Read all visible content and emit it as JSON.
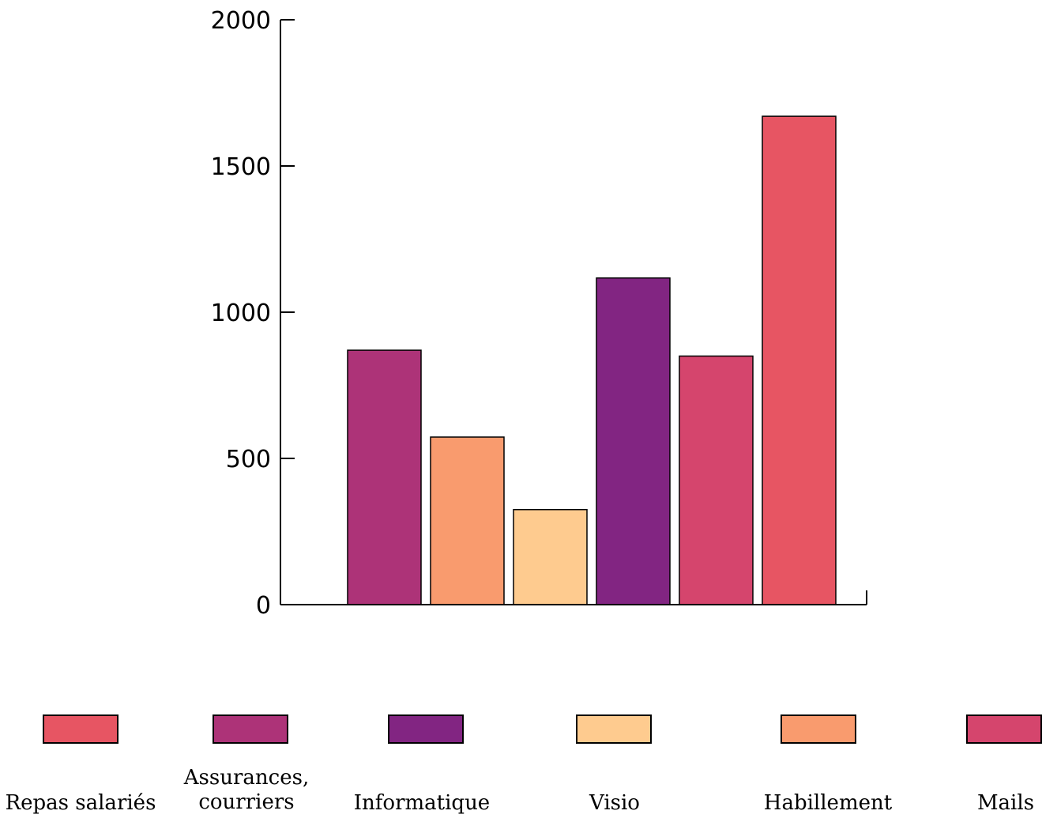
{
  "chart_data": {
    "type": "bar",
    "categories": [
      "Assurances, courriers",
      "Habillement",
      "Visio",
      "Informatique",
      "Mails",
      "Repas salariés"
    ],
    "values": [
      870,
      573,
      325,
      1117,
      850,
      1670
    ],
    "ylim": [
      0,
      2000
    ],
    "yticks": [
      0,
      500,
      1000,
      1500,
      2000
    ],
    "title": "",
    "xlabel": "",
    "ylabel": "",
    "grid": false,
    "legend_placement": "bottom",
    "legend": [
      {
        "label": "Repas salariés",
        "color": "#e75563"
      },
      {
        "label": "Assurances, courriers",
        "color": "#ad3378"
      },
      {
        "label": "Informatique",
        "color": "#822582"
      },
      {
        "label": "Visio",
        "color": "#fecb8f"
      },
      {
        "label": "Habillement",
        "color": "#f99b6e"
      },
      {
        "label": "Mails",
        "color": "#d5456d"
      }
    ],
    "bar_colors": [
      "#ad3378",
      "#f99b6e",
      "#fecb8f",
      "#822582",
      "#d5456d",
      "#e75563"
    ]
  }
}
